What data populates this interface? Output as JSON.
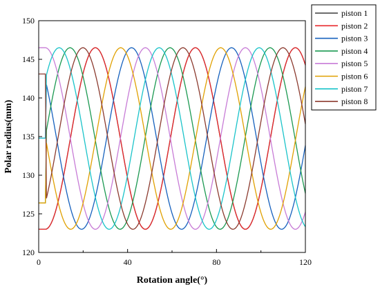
{
  "chart_data": {
    "type": "line",
    "title": "",
    "xlabel": "Rotation angle(°)",
    "ylabel": "Polar radius(mm)",
    "xlim": [
      0,
      120
    ],
    "ylim": [
      120,
      150
    ],
    "xticks": [
      0,
      40,
      80,
      120
    ],
    "yticks": [
      120,
      125,
      130,
      135,
      140,
      145,
      150
    ],
    "grid": false,
    "legend_position": "top-right, outside plot area",
    "wave": {
      "min": 123.0,
      "max": 146.5,
      "period_deg": 45,
      "dwell_deg": 3
    },
    "series": [
      {
        "name": "piston 1",
        "color": "#3a3a3a",
        "start_value": 123.0,
        "start_phase_deg": 0
      },
      {
        "name": "piston 2",
        "color": "#e8272b",
        "start_value": 123.0,
        "start_phase_deg": 0
      },
      {
        "name": "piston 3",
        "color": "#1560bd",
        "start_value": 134.8,
        "start_phase_deg": 28.7
      },
      {
        "name": "piston 4",
        "color": "#1a9850",
        "start_value": 126.4,
        "start_phase_deg": 11.4
      },
      {
        "name": "piston 5",
        "color": "#c77bd6",
        "start_value": 146.5,
        "start_phase_deg": 22.5
      },
      {
        "name": "piston 6",
        "color": "#e0a000",
        "start_value": 126.4,
        "start_phase_deg": 33.6
      },
      {
        "name": "piston 7",
        "color": "#19c3c9",
        "start_value": 134.8,
        "start_phase_deg": 16.3
      },
      {
        "name": "piston 8",
        "color": "#8b3a2e",
        "start_value": 143.1,
        "start_phase_deg": 5.6
      }
    ]
  }
}
